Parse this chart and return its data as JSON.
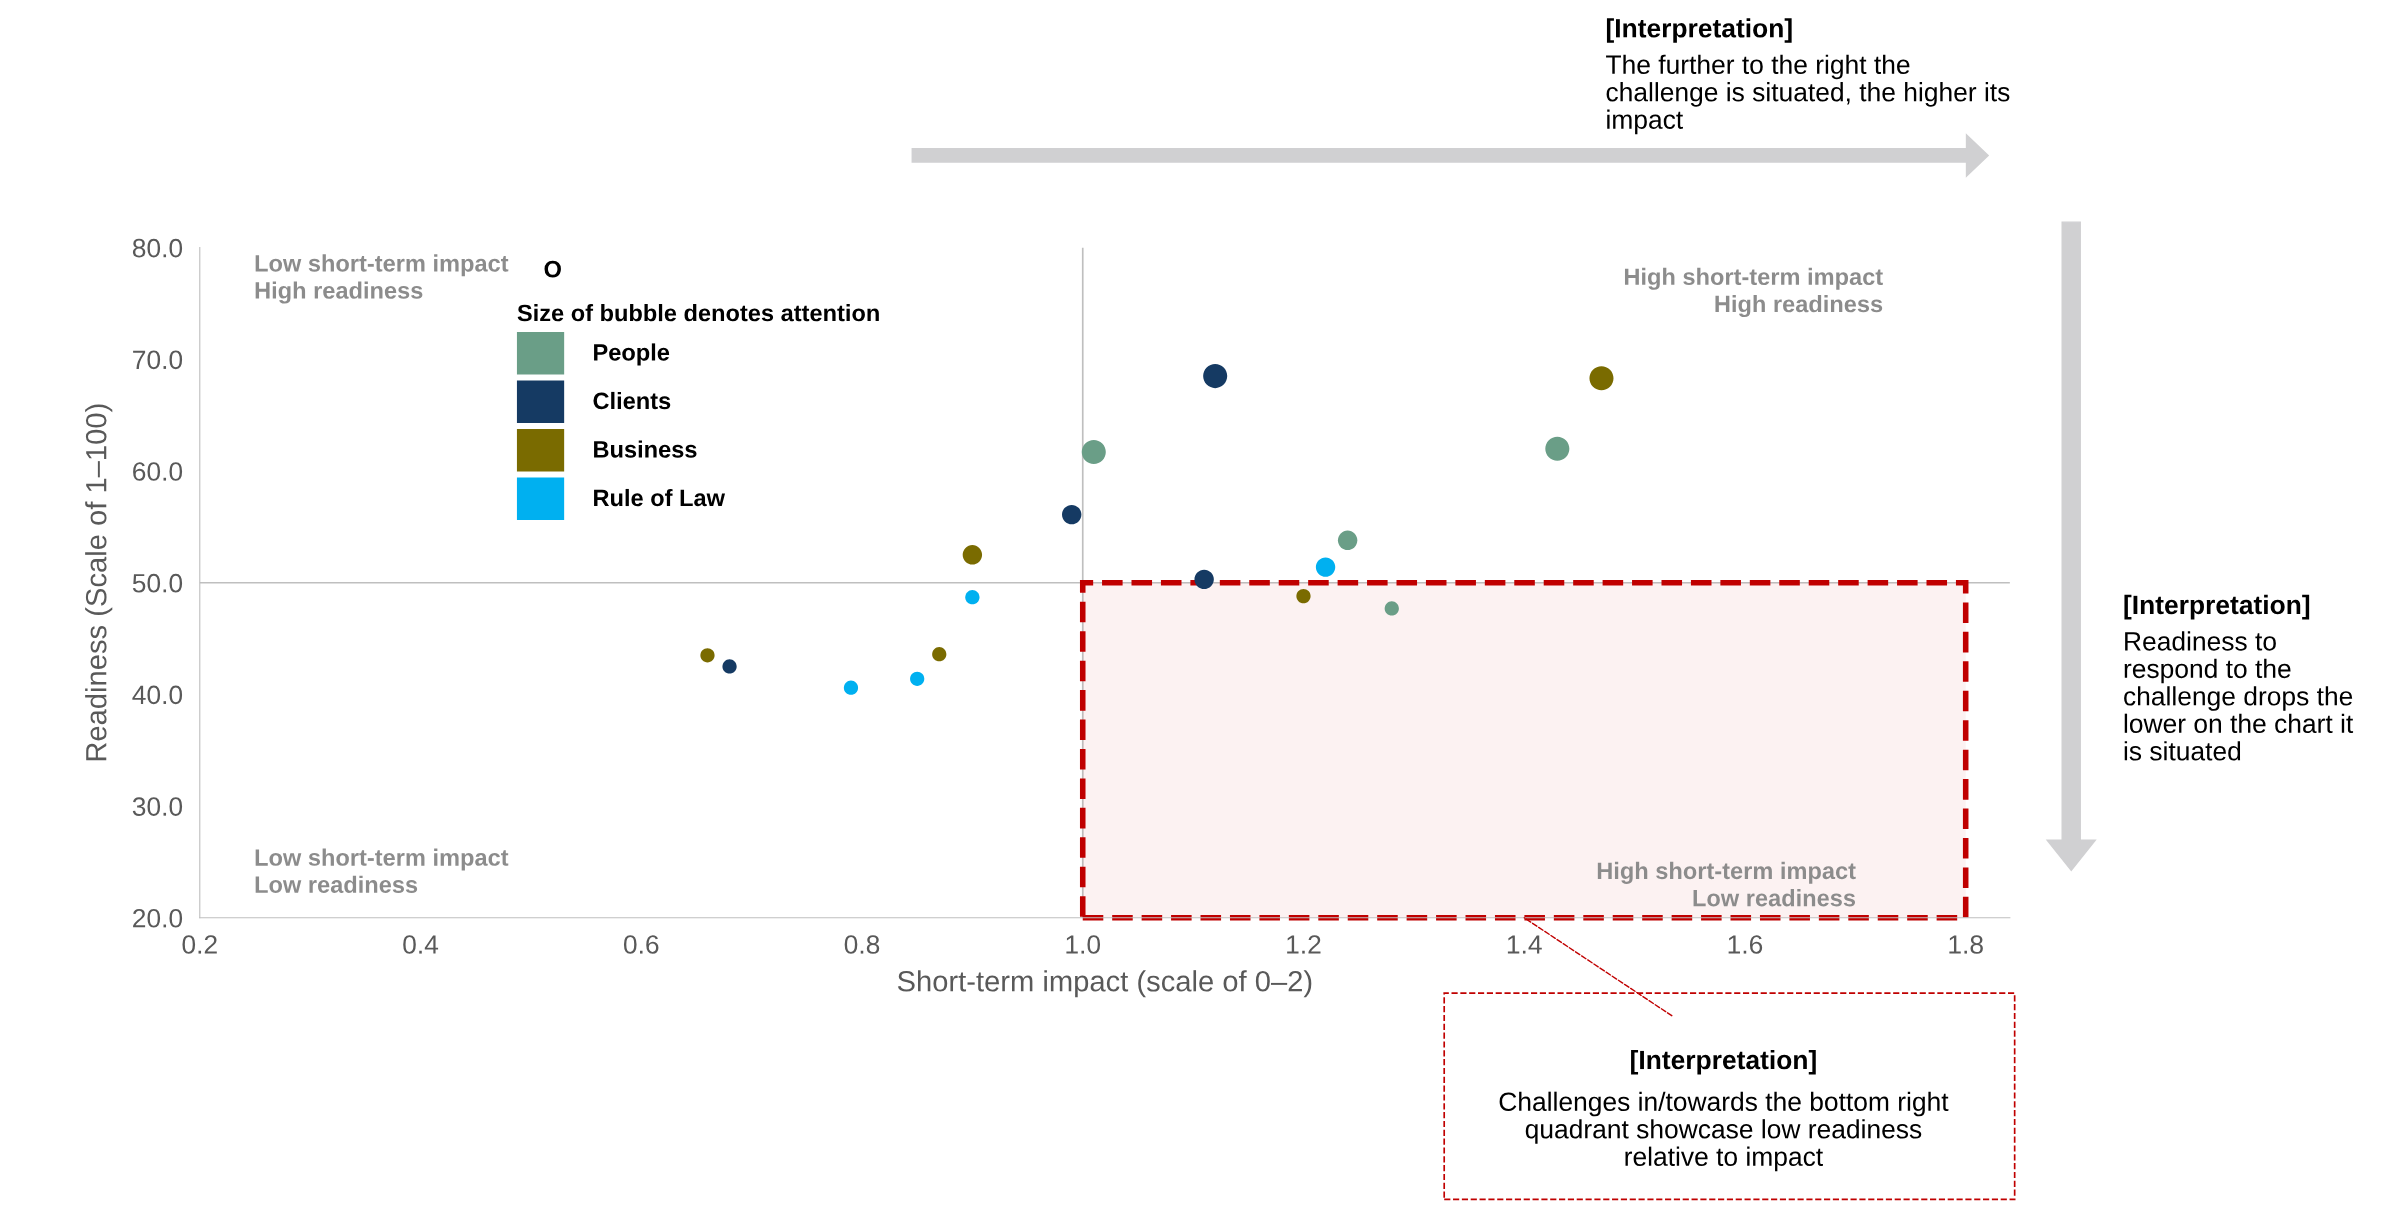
{
  "chart_data": {
    "type": "bubble",
    "xlabel": "Short-term impact (scale of 0–2)",
    "ylabel": "Readiness (Scale of 1–100)",
    "legend_title": "Size of bubble denotes attention",
    "series": [
      {
        "name": "People",
        "color": "#6a9e87",
        "x": [
          1.01,
          1.43,
          1.24,
          1.28
        ],
        "values": [
          61.7,
          62.0,
          53.8,
          47.7
        ],
        "sizes": [
          1,
          1,
          0.65,
          0.35
        ]
      },
      {
        "name": "Clients",
        "color": "#153a63",
        "x": [
          1.12,
          0.99,
          1.11,
          0.68
        ],
        "values": [
          68.5,
          56.1,
          50.3,
          42.5
        ],
        "sizes": [
          1,
          0.65,
          0.65,
          0.35
        ]
      },
      {
        "name": "Business",
        "color": "#7a6b00",
        "x": [
          1.47,
          0.9,
          1.2,
          0.87,
          0.66
        ],
        "values": [
          68.3,
          52.5,
          48.8,
          43.6,
          43.5
        ],
        "sizes": [
          1,
          0.65,
          0.35,
          0.35,
          0.35
        ]
      },
      {
        "name": "Rule of Law",
        "color": "#00b0f0",
        "x": [
          1.22,
          0.9,
          0.85,
          0.79
        ],
        "values": [
          51.4,
          48.7,
          41.4,
          40.6
        ],
        "sizes": [
          0.65,
          0.35,
          0.35,
          0.35
        ]
      }
    ],
    "xlim": [
      0.2,
      1.84
    ],
    "xticks": [
      0.2,
      0.4,
      0.6,
      0.8,
      {
        "value": 1.0,
        "label": "1.0"
      },
      1.2,
      1.4,
      1.6,
      1.8
    ],
    "ylim": [
      20,
      80
    ],
    "yticks": [
      {
        "value": 20,
        "label": "20.0"
      },
      {
        "value": 30,
        "label": "30.0"
      },
      {
        "value": 40,
        "label": "40.0"
      },
      {
        "value": 50,
        "label": "50.0"
      },
      {
        "value": 60,
        "label": "60.0"
      },
      {
        "value": 70,
        "label": "70.0"
      },
      {
        "value": 80,
        "label": "80.0"
      }
    ],
    "ref_lines": [
      {
        "axis": "x",
        "value": 1.0,
        "color": "#bfbfbf"
      },
      {
        "axis": "y",
        "value": 50,
        "color": "#bfbfbf"
      }
    ],
    "bands": [
      {
        "axis": "x",
        "from": 1.0,
        "to": 1.8,
        "color": "#c00000"
      }
    ],
    "legend": "top left",
    "grid": false,
    "annotations": [
      "Low short-term impact\nHigh readiness",
      "High short-term impact\nHigh readiness",
      "Low short-term impact\nLow readiness",
      "High short-term impact\nLow readiness",
      "O",
      "[Interpretation]",
      "The further to the right the\nchallenge is situated, the higher its\nimpact",
      "[Interpretation]",
      "Readiness to\nrespond to the\nchallenge drops the\nlower on the chart it\nis situated",
      {
        "text": "[Interpretation]",
        "x": 1.4,
        "y": 20
      },
      "Challenges in/towards the bottom right\nquadrant showcase low readiness\nrelative to impact"
    ]
  }
}
